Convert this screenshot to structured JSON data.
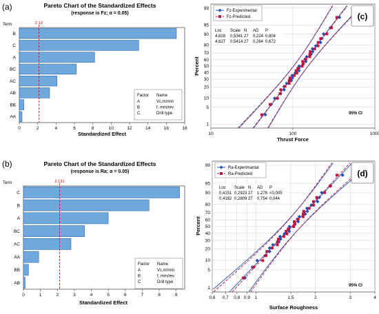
{
  "chart_data": [
    {
      "panel": "(a)",
      "type": "bar",
      "orientation": "horizontal",
      "title": "Pareto Chart of the Standardized Effects",
      "subtitle": "(response is Fz; α = 0.05)",
      "xlabel": "Standardized Effect",
      "ylabel": "Term",
      "categories": [
        "B",
        "C",
        "A",
        "BC",
        "AC",
        "AB",
        "BB",
        "AA"
      ],
      "values": [
        17.1,
        13.0,
        8.2,
        6.2,
        4.1,
        3.3,
        0.5,
        0.3
      ],
      "xlim": [
        0,
        18
      ],
      "xticks": [
        "0",
        "2",
        "4",
        "6",
        "8",
        "10",
        "12",
        "14",
        "16",
        "18"
      ],
      "reference_value": 2.13,
      "reference_label": "2.13",
      "bar_color": "#6fa8dc",
      "reference_color": "#d00000",
      "factor_table": {
        "headers": [
          "Factor",
          "Name"
        ],
        "rows": [
          [
            "A",
            "Vc,m/min"
          ],
          [
            "B",
            "f, mm/rev"
          ],
          [
            "C",
            "Drill type"
          ]
        ]
      }
    },
    {
      "panel": "(b)",
      "type": "bar",
      "orientation": "horizontal",
      "title": "Pareto Chart of the Standardized Effects",
      "subtitle": "(response is Ra; α = 0.05)",
      "xlabel": "Standardized Effect",
      "ylabel": "Term",
      "categories": [
        "C",
        "B",
        "A",
        "BC",
        "AC",
        "AA",
        "BB",
        "AB"
      ],
      "values": [
        9.2,
        7.4,
        5.0,
        3.6,
        2.8,
        0.9,
        0.3,
        0.1
      ],
      "xlim": [
        0,
        9.5
      ],
      "xticks": [
        "0",
        "1",
        "2",
        "3",
        "4",
        "5",
        "6",
        "7",
        "8",
        "9"
      ],
      "reference_value": 2.131,
      "reference_label": "2.131",
      "bar_color": "#6fa8dc",
      "reference_color": "#d00000",
      "factor_table": {
        "headers": [
          "Factor",
          "Name"
        ],
        "rows": [
          [
            "A",
            "Vc,m/min"
          ],
          [
            "B",
            "f, mm/rev"
          ],
          [
            "C",
            "Drill type"
          ]
        ]
      }
    },
    {
      "panel": "(c)",
      "type": "scatter",
      "scale": "lognormal-probability",
      "xlabel": "Thrust Force",
      "ylabel": "Percent",
      "xlim": [
        10,
        1000
      ],
      "xticks": [
        "10",
        "100",
        "1000"
      ],
      "yticks": [
        "1",
        "5",
        "10",
        "20",
        "30",
        "40",
        "50",
        "60",
        "70",
        "80",
        "90",
        "95",
        "99"
      ],
      "ci_label": "95% CI",
      "stats_table": {
        "headers": [
          "Loc",
          "Scale",
          "N",
          "AD",
          "P"
        ],
        "rows": [
          [
            "4,828",
            "0,5341",
            "27",
            "0,224",
            "0,804"
          ],
          [
            "4,827",
            "0,5414",
            "27",
            "0,264",
            "0,672"
          ]
        ]
      },
      "series": [
        {
          "name": "Fz-Experimental",
          "color": "#1f4fb4",
          "marker": "diamond",
          "loc": 4.828,
          "scale": 0.5341,
          "n": 27
        },
        {
          "name": "Fz-Predicted",
          "color": "#c0143c",
          "marker": "square",
          "loc": 4.827,
          "scale": 0.5414,
          "n": 27
        }
      ]
    },
    {
      "panel": "(d)",
      "type": "scatter",
      "scale": "lognormal-probability",
      "xlabel": "Surface Roughness",
      "ylabel": "Percent",
      "xlim": [
        0.6,
        4
      ],
      "xticks": [
        "0,6",
        "0,7",
        "0,8",
        "0,9",
        "1",
        "1,5",
        "2",
        "3",
        "4"
      ],
      "yticks": [
        "1",
        "5",
        "10",
        "20",
        "30",
        "40",
        "50",
        "60",
        "70",
        "80",
        "90",
        "95",
        "99"
      ],
      "ci_label": "95% CI",
      "stats_table": {
        "headers": [
          "Loc",
          "Scale",
          "N",
          "AD",
          "P"
        ],
        "rows": [
          [
            "0,4151",
            "0,2923",
            "27",
            "1,278",
            "<0,005"
          ],
          [
            "0,4182",
            "0,2809",
            "27",
            "0,754",
            "0,044"
          ]
        ]
      },
      "series": [
        {
          "name": "Ra-Experimantal",
          "color": "#1f4fb4",
          "marker": "diamond",
          "loc": 0.4151,
          "scale": 0.2923,
          "n": 27
        },
        {
          "name": "Ra-Predicted",
          "color": "#c0143c",
          "marker": "square",
          "loc": 0.4182,
          "scale": 0.2809,
          "n": 27
        }
      ]
    }
  ]
}
